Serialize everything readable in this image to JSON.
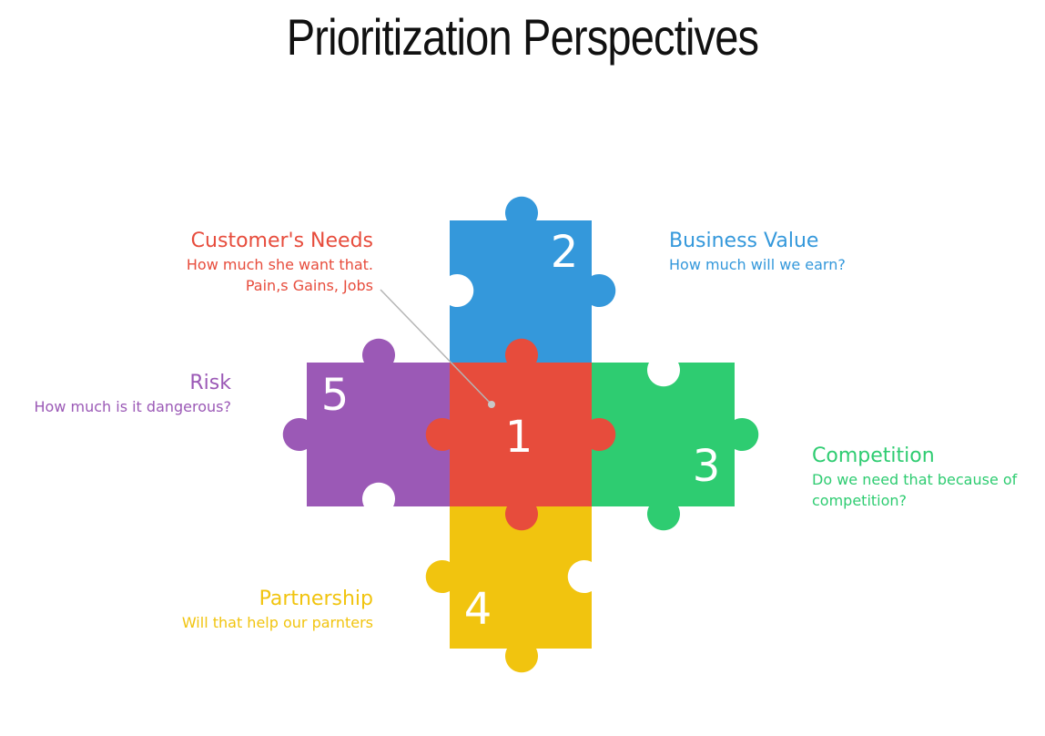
{
  "title": "Prioritization Perspectives",
  "colors": {
    "customer": "#e74c3c",
    "business": "#3498db",
    "competition": "#2ecc71",
    "partnership": "#f1c40f",
    "risk": "#9b59b6"
  },
  "pieces": [
    {
      "id": "customer",
      "number": "1"
    },
    {
      "id": "business",
      "number": "2"
    },
    {
      "id": "competition",
      "number": "3"
    },
    {
      "id": "partnership",
      "number": "4"
    },
    {
      "id": "risk",
      "number": "5"
    }
  ],
  "labels": {
    "customer": {
      "title": "Customer's Needs",
      "lines": [
        "How much she want that.",
        "Pain,s Gains, Jobs"
      ]
    },
    "business": {
      "title": "Business Value",
      "lines": [
        "How much will we earn?"
      ]
    },
    "competition": {
      "title": "Competition",
      "lines": [
        "Do we need that because of",
        "competition?"
      ]
    },
    "partnership": {
      "title": "Partnership",
      "lines": [
        "Will that help our parnters"
      ]
    },
    "risk": {
      "title": "Risk",
      "lines": [
        "How much is it dangerous?"
      ]
    }
  }
}
